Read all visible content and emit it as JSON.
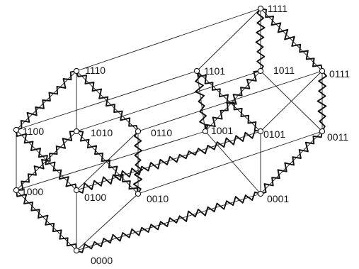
{
  "figure": {
    "description_labels": true
  },
  "nodes": [
    {
      "id": "0000",
      "label": "0000"
    },
    {
      "id": "1000",
      "label": "1000"
    },
    {
      "id": "0100",
      "label": "0100"
    },
    {
      "id": "0010",
      "label": "0010"
    },
    {
      "id": "0001",
      "label": "0001"
    },
    {
      "id": "1100",
      "label": "1100"
    },
    {
      "id": "1010",
      "label": "1010"
    },
    {
      "id": "0110",
      "label": "0110"
    },
    {
      "id": "1001",
      "label": "1001"
    },
    {
      "id": "0101",
      "label": "0101"
    },
    {
      "id": "0011",
      "label": "0011"
    },
    {
      "id": "1110",
      "label": "1110"
    },
    {
      "id": "1101",
      "label": "1101"
    },
    {
      "id": "1011",
      "label": "1011"
    },
    {
      "id": "0111",
      "label": "0111"
    },
    {
      "id": "1111",
      "label": "1111"
    }
  ],
  "edges": [
    [
      "0000",
      "1000"
    ],
    [
      "0000",
      "0100"
    ],
    [
      "0000",
      "0010"
    ],
    [
      "0000",
      "0001"
    ],
    [
      "1000",
      "1100"
    ],
    [
      "1000",
      "1010"
    ],
    [
      "1000",
      "1001"
    ],
    [
      "0100",
      "1100"
    ],
    [
      "0100",
      "0110"
    ],
    [
      "0100",
      "0101"
    ],
    [
      "0010",
      "1010"
    ],
    [
      "0010",
      "0110"
    ],
    [
      "0010",
      "0011"
    ],
    [
      "0001",
      "1001"
    ],
    [
      "0001",
      "0101"
    ],
    [
      "0001",
      "0011"
    ],
    [
      "1100",
      "1110"
    ],
    [
      "1100",
      "1101"
    ],
    [
      "1010",
      "1110"
    ],
    [
      "1010",
      "1011"
    ],
    [
      "0110",
      "1110"
    ],
    [
      "0110",
      "0111"
    ],
    [
      "1001",
      "1101"
    ],
    [
      "1001",
      "1011"
    ],
    [
      "0101",
      "1101"
    ],
    [
      "0101",
      "0111"
    ],
    [
      "0011",
      "1011"
    ],
    [
      "0011",
      "0111"
    ],
    [
      "1110",
      "1111"
    ],
    [
      "1101",
      "1111"
    ],
    [
      "1011",
      "1111"
    ],
    [
      "0111",
      "1111"
    ]
  ],
  "tour": [
    "0000",
    "0001",
    "0011",
    "0111",
    "1111",
    "1011",
    "1001",
    "1101",
    "0101",
    "0100",
    "1100",
    "1110",
    "0110",
    "0010",
    "1010",
    "1000",
    "0000"
  ],
  "style": {
    "line_color": "#111111",
    "background": "#ffffff"
  }
}
